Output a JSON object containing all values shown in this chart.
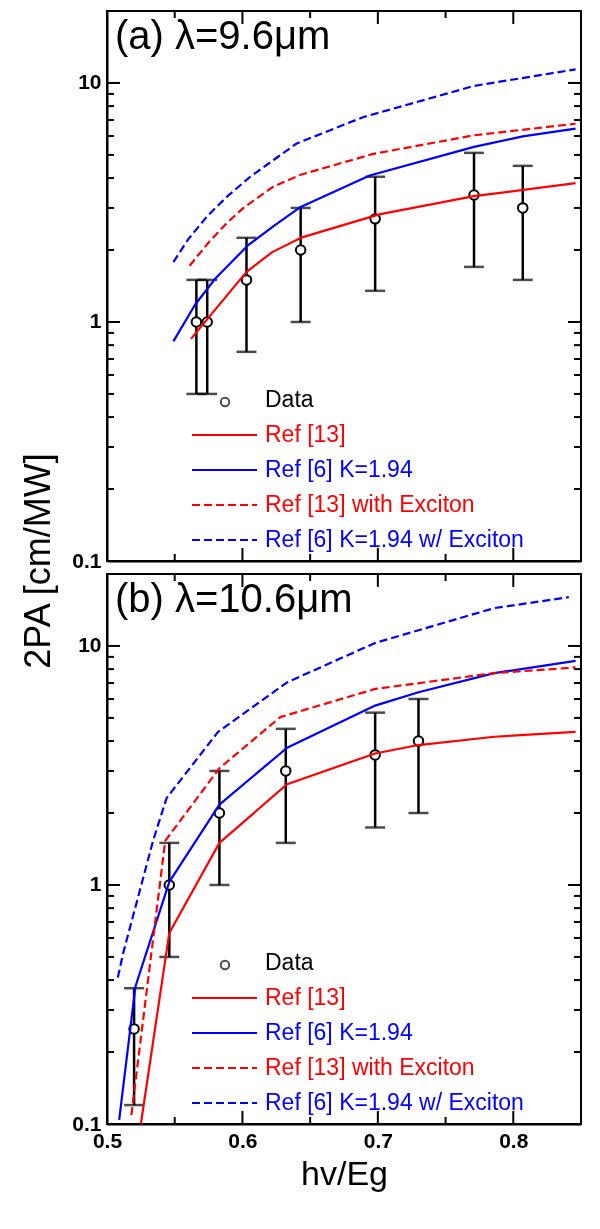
{
  "chart_data": [
    {
      "type": "line",
      "annotations": [
        "(a) λ=9.6μm"
      ],
      "ylabel": "2PA [cm/MW]",
      "log": true,
      "grid": false,
      "legend": "bottom",
      "tick_labels": "y",
      "xlim": [
        0.5,
        0.85
      ],
      "xticks": [
        0.5,
        {
          "value": 0.55,
          "label": null
        },
        0.6,
        {
          "value": 0.65,
          "label": null
        },
        0.7,
        {
          "value": 0.75,
          "label": null
        },
        0.8
      ],
      "ylim": [
        0.1,
        20
      ],
      "yticks": [
        0.1,
        {
          "value": 0.2,
          "label": null
        },
        {
          "value": 0.3,
          "label": null
        },
        {
          "value": 0.4,
          "label": null
        },
        {
          "value": 0.5,
          "label": null
        },
        {
          "value": 0.6,
          "label": null
        },
        {
          "value": 0.7,
          "label": null
        },
        {
          "value": 0.8,
          "label": null
        },
        {
          "value": 0.9,
          "label": null
        },
        1,
        {
          "value": 2,
          "label": null
        },
        {
          "value": 3,
          "label": null
        },
        {
          "value": 4,
          "label": null
        },
        {
          "value": 5,
          "label": null
        },
        {
          "value": 6,
          "label": null
        },
        {
          "value": 7,
          "label": null
        },
        {
          "value": 8,
          "label": null
        },
        {
          "value": 9,
          "label": null
        },
        10
      ],
      "series": [
        {
          "name": "Data",
          "type": "scatter",
          "marker": "circle",
          "color": "#000000",
          "x": [
            0.566,
            0.574,
            0.603,
            0.643,
            0.698,
            0.771,
            0.807
          ],
          "values": [
            1.0,
            1.0,
            1.5,
            2.0,
            2.7,
            3.4,
            3.0
          ],
          "errors": [
            [
              0.5,
              1.5
            ],
            [
              0.5,
              1.5
            ],
            [
              0.75,
              2.25
            ],
            [
              1.0,
              3.0
            ],
            [
              1.35,
              4.05
            ],
            [
              1.7,
              5.1
            ],
            [
              1.5,
              4.5
            ]
          ]
        },
        {
          "name": "Ref [13]",
          "marker": "none",
          "line_style": "solid",
          "color": "#ff0000",
          "x": [
            0.562,
            0.603,
            0.622,
            0.644,
            0.701,
            0.771,
            0.846
          ],
          "values": [
            0.85,
            1.62,
            1.96,
            2.26,
            2.82,
            3.36,
            3.81
          ]
        },
        {
          "name": "Ref [6] K=1.94",
          "marker": "none",
          "line_style": "solid",
          "color": "#0000ff",
          "x": [
            0.549,
            0.565,
            0.58,
            0.604,
            0.623,
            0.643,
            0.694,
            0.771,
            0.807,
            0.846
          ],
          "values": [
            0.83,
            1.18,
            1.52,
            2.09,
            2.52,
            3.03,
            4.1,
            5.4,
            5.98,
            6.44
          ]
        },
        {
          "name": "Ref [13] with Exciton",
          "marker": "none",
          "line_style": "dashed",
          "color": "#ff0000",
          "x": [
            0.561,
            0.575,
            0.589,
            0.601,
            0.623,
            0.643,
            0.696,
            0.771,
            0.846
          ],
          "values": [
            1.72,
            2.15,
            2.61,
            3.01,
            3.69,
            4.13,
            5.04,
            6.04,
            6.75
          ]
        },
        {
          "name": "Ref [6] K=1.94 w/ Exciton",
          "marker": "none",
          "line_style": "dashed",
          "color": "#0000ff",
          "x": [
            0.549,
            0.56,
            0.574,
            0.589,
            0.606,
            0.623,
            0.64,
            0.689,
            0.771,
            0.846
          ],
          "values": [
            1.78,
            2.22,
            2.77,
            3.36,
            4.06,
            4.76,
            5.58,
            7.19,
            9.72,
            11.4
          ]
        }
      ]
    },
    {
      "type": "line",
      "annotations": [
        "(b) λ=10.6μm"
      ],
      "xlabel": "hv/Eg",
      "log": true,
      "grid": false,
      "legend": "bottom",
      "xlim": [
        0.5,
        0.85
      ],
      "xticks": [
        0.5,
        {
          "value": 0.55,
          "label": null
        },
        0.6,
        {
          "value": 0.65,
          "label": null
        },
        0.7,
        {
          "value": 0.75,
          "label": null
        },
        0.8
      ],
      "ylim": [
        0.1,
        20
      ],
      "yticks": [
        0.1,
        {
          "value": 0.2,
          "label": null
        },
        {
          "value": 0.3,
          "label": null
        },
        {
          "value": 0.4,
          "label": null
        },
        {
          "value": 0.5,
          "label": null
        },
        {
          "value": 0.6,
          "label": null
        },
        {
          "value": 0.7,
          "label": null
        },
        {
          "value": 0.8,
          "label": null
        },
        {
          "value": 0.9,
          "label": null
        },
        1,
        {
          "value": 2,
          "label": null
        },
        {
          "value": 3,
          "label": null
        },
        {
          "value": 4,
          "label": null
        },
        {
          "value": 5,
          "label": null
        },
        {
          "value": 6,
          "label": null
        },
        {
          "value": 7,
          "label": null
        },
        {
          "value": 8,
          "label": null
        },
        {
          "value": 9,
          "label": null
        },
        10
      ],
      "series": [
        {
          "name": "Data",
          "type": "scatter",
          "marker": "circle",
          "color": "#000000",
          "x": [
            0.52,
            0.546,
            0.583,
            0.632,
            0.698,
            0.73
          ],
          "values": [
            0.25,
            1.0,
            2.0,
            3.0,
            3.5,
            4.0
          ],
          "errors": [
            [
              0.12,
              0.37
            ],
            [
              0.5,
              1.5
            ],
            [
              1.0,
              3.0
            ],
            [
              1.5,
              4.5
            ],
            [
              1.74,
              5.26
            ],
            [
              2.0,
              6.0
            ]
          ]
        },
        {
          "name": "Ref [13]",
          "marker": "none",
          "line_style": "solid",
          "color": "#ff0000",
          "x": [
            0.525,
            0.546,
            0.583,
            0.633,
            0.698,
            0.73,
            0.786,
            0.846
          ],
          "values": [
            0.1,
            0.63,
            1.5,
            2.64,
            3.55,
            3.85,
            4.17,
            4.37
          ]
        },
        {
          "name": "Ref [6]  K=1.94",
          "marker": "none",
          "line_style": "solid",
          "color": "#0000ff",
          "x": [
            0.509,
            0.521,
            0.546,
            0.583,
            0.633,
            0.698,
            0.73,
            0.786,
            0.846
          ],
          "values": [
            0.104,
            0.376,
            1.03,
            2.17,
            3.75,
            5.63,
            6.4,
            7.7,
            8.66
          ]
        },
        {
          "name": "Ref [13] with Exciton",
          "marker": "none",
          "line_style": "dashed",
          "color": "#ff0000",
          "x": [
            0.518,
            0.543,
            0.583,
            0.628,
            0.698,
            0.786,
            0.846
          ],
          "values": [
            0.109,
            1.53,
            3.08,
            5.04,
            6.61,
            7.7,
            8.13
          ]
        },
        {
          "name": "Ref [6]  K=1.94 w/ Exciton",
          "marker": "none",
          "line_style": "dashed",
          "color": "#0000ff",
          "x": [
            0.508,
            0.512,
            0.534,
            0.544,
            0.582,
            0.633,
            0.698,
            0.786,
            0.841
          ],
          "values": [
            0.41,
            0.52,
            1.53,
            2.31,
            4.37,
            7.04,
            10.3,
            14.4,
            16.0
          ]
        }
      ]
    }
  ]
}
